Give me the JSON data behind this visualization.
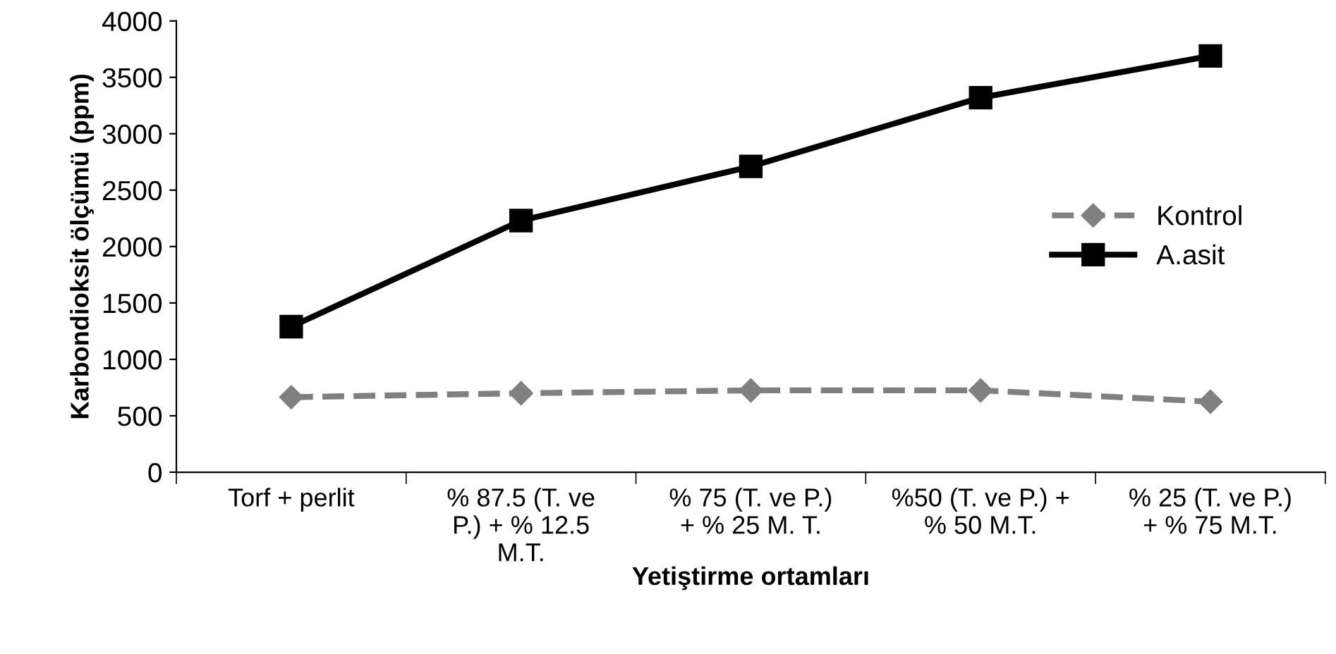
{
  "chart_data": {
    "type": "line",
    "xlabel": "Yetiştirme ortamları",
    "ylabel": "Karbondioksit ölçümü (ppm)",
    "categories": [
      "Torf + perlit",
      "% 87.5 (T. ve\nP.) + % 12.5\nM.T.",
      "% 75 (T. ve P.)\n+ % 25 M. T.",
      "%50 (T. ve P.) +\n% 50 M.T.",
      "% 25 (T. ve P.)\n+ % 75 M.T."
    ],
    "series": [
      {
        "name": "Kontrol",
        "color": "#808080",
        "values": [
          665,
          700,
          725,
          725,
          625
        ],
        "marker": "diamond",
        "line_style": "dashed"
      },
      {
        "name": "A.asit",
        "color": "#000000",
        "values": [
          1290,
          2230,
          2710,
          3320,
          3690
        ],
        "marker": "square",
        "line_style": "solid"
      }
    ],
    "ylim": [
      0,
      4000
    ],
    "yticks": [
      0,
      500,
      1000,
      1500,
      2000,
      2500,
      3000,
      3500,
      4000
    ],
    "grid": false,
    "legend": "right"
  }
}
